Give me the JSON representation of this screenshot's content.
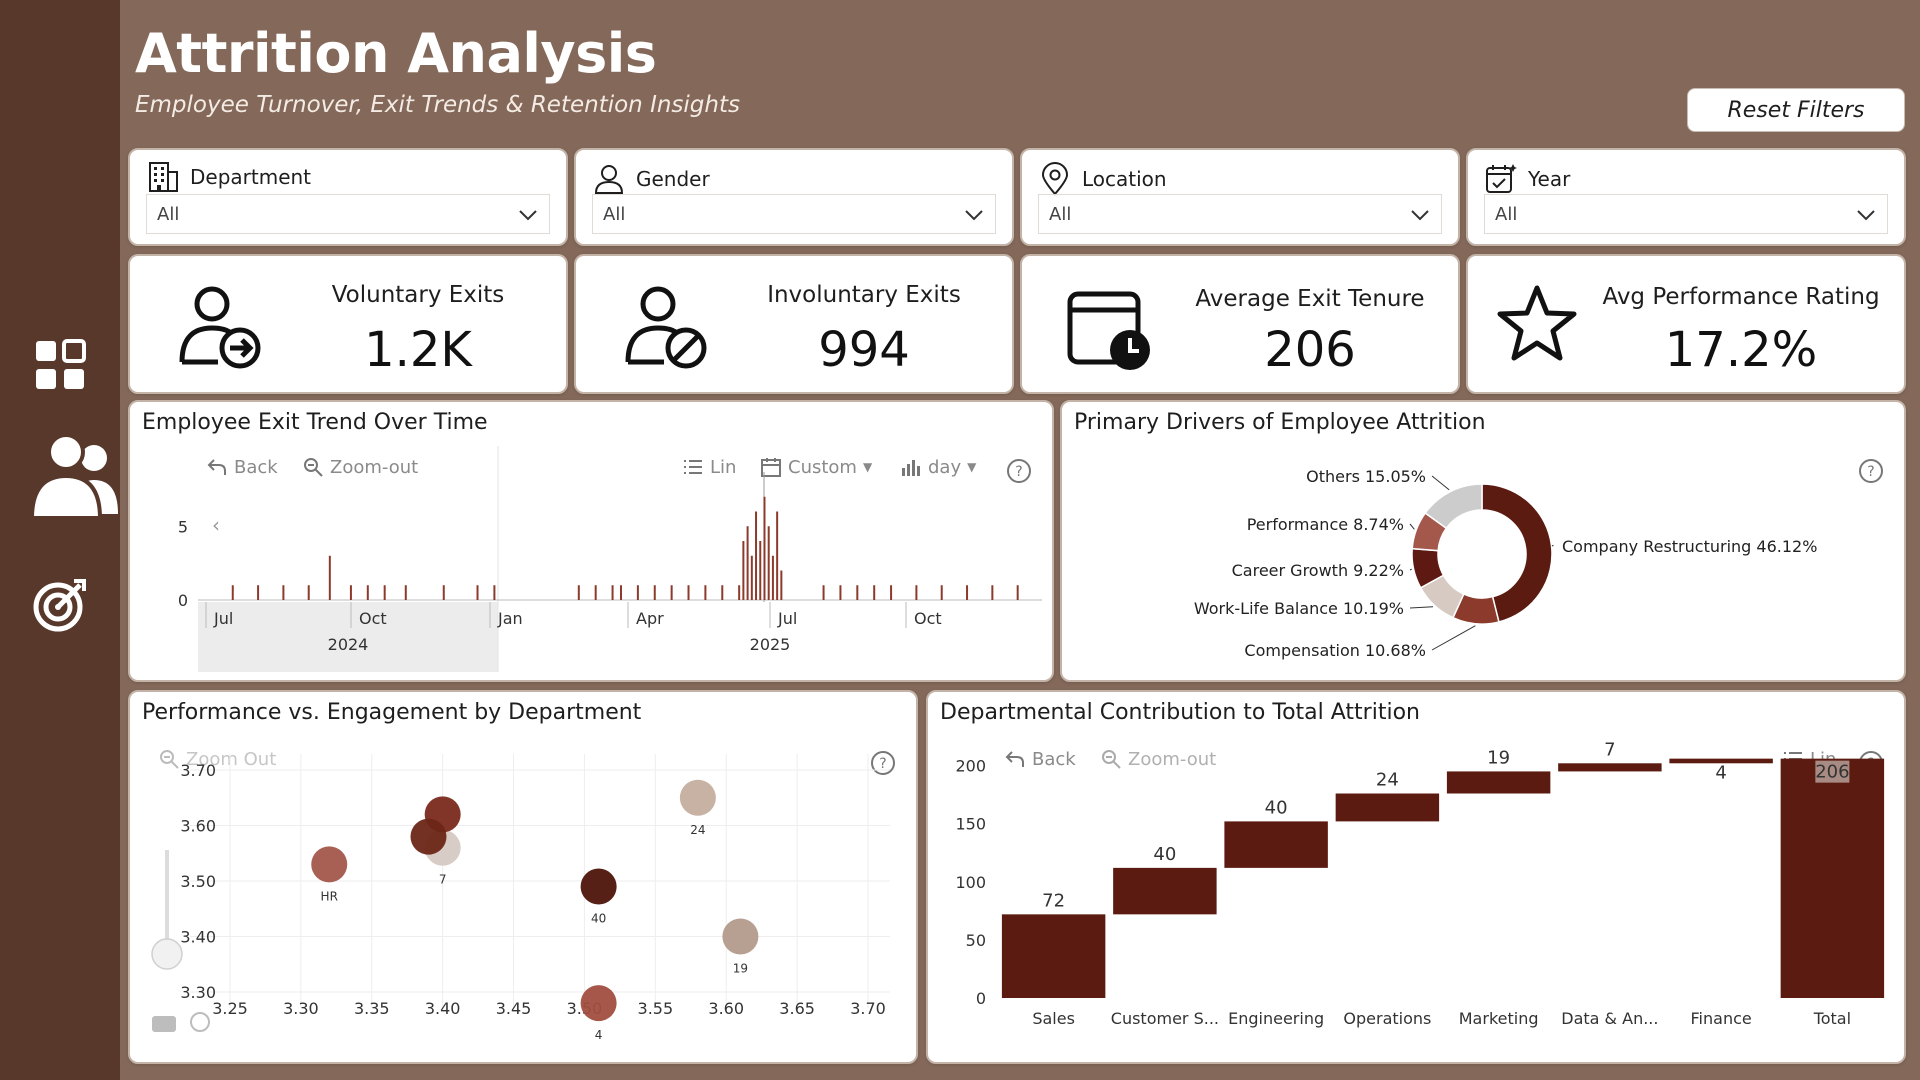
{
  "header": {
    "title": "Attrition Analysis",
    "subtitle": "Employee Turnover, Exit Trends & Retention Insights",
    "reset_label": "Reset Filters"
  },
  "colors": {
    "background": "#84695a",
    "sidebar": "#59382c",
    "dark_brown": "#5b1b10",
    "mid_brown": "#7a2a1e",
    "rose": "#a4574b",
    "tan": "#b39a8c",
    "light_tan": "#d6cac3",
    "grey": "#cccccc"
  },
  "sidebar": {
    "items": [
      {
        "icon": "dashboard-icon"
      },
      {
        "icon": "people-icon"
      },
      {
        "icon": "target-icon"
      }
    ]
  },
  "filters": [
    {
      "label": "Department",
      "icon": "building-icon",
      "value": "All"
    },
    {
      "label": "Gender",
      "icon": "person-icon",
      "value": "All"
    },
    {
      "label": "Location",
      "icon": "location-pin-icon",
      "value": "All"
    },
    {
      "label": "Year",
      "icon": "calendar-check-icon",
      "value": "All"
    }
  ],
  "kpis": [
    {
      "label": "Voluntary Exits",
      "value": "1.2K",
      "icon": "user-exit-icon"
    },
    {
      "label": "Involuntary Exits",
      "value": "994",
      "icon": "user-blocked-icon"
    },
    {
      "label": "Average Exit Tenure",
      "value": "206",
      "icon": "calendar-clock-icon"
    },
    {
      "label": "Avg Performance Rating",
      "value": "17.2%",
      "icon": "star-icon"
    }
  ],
  "trend_panel": {
    "title": "Employee Exit Trend Over Time",
    "toolbar": {
      "back": "Back",
      "zoom": "Zoom-out",
      "scale": "Lin",
      "range": "Custom",
      "granularity": "day"
    }
  },
  "drivers_panel": {
    "title": "Primary Drivers of Employee Attrition"
  },
  "scatter_panel": {
    "title": "Performance vs. Engagement by Department",
    "zoom": "Zoom Out"
  },
  "waterfall_panel": {
    "title": "Departmental Contribution to Total Attrition",
    "toolbar": {
      "back": "Back",
      "zoom": "Zoom-out",
      "scale": "Lin"
    }
  },
  "chart_data": [
    {
      "type": "bar",
      "title": "Employee Exit Trend Over Time",
      "x_ticks": [
        "Jul",
        "Oct",
        "Jan",
        "Apr",
        "Jul",
        "Oct"
      ],
      "x_years": [
        "2024",
        "2025"
      ],
      "y_ticks": [
        0,
        5
      ],
      "ylim": [
        0,
        8
      ],
      "series": [
        {
          "values": [
            {
              "x": 0.04,
              "y": 1
            },
            {
              "x": 0.07,
              "y": 1
            },
            {
              "x": 0.1,
              "y": 1
            },
            {
              "x": 0.13,
              "y": 1
            },
            {
              "x": 0.155,
              "y": 3
            },
            {
              "x": 0.18,
              "y": 1
            },
            {
              "x": 0.2,
              "y": 1
            },
            {
              "x": 0.22,
              "y": 1
            },
            {
              "x": 0.245,
              "y": 1
            },
            {
              "x": 0.29,
              "y": 1
            },
            {
              "x": 0.33,
              "y": 1
            },
            {
              "x": 0.35,
              "y": 1
            },
            {
              "x": 0.45,
              "y": 1
            },
            {
              "x": 0.47,
              "y": 1
            },
            {
              "x": 0.49,
              "y": 1
            },
            {
              "x": 0.5,
              "y": 1
            },
            {
              "x": 0.52,
              "y": 1
            },
            {
              "x": 0.54,
              "y": 1
            },
            {
              "x": 0.56,
              "y": 1
            },
            {
              "x": 0.58,
              "y": 1
            },
            {
              "x": 0.6,
              "y": 1
            },
            {
              "x": 0.62,
              "y": 1
            },
            {
              "x": 0.64,
              "y": 1
            },
            {
              "x": 0.645,
              "y": 4
            },
            {
              "x": 0.65,
              "y": 5
            },
            {
              "x": 0.655,
              "y": 3
            },
            {
              "x": 0.66,
              "y": 6
            },
            {
              "x": 0.665,
              "y": 4
            },
            {
              "x": 0.67,
              "y": 7
            },
            {
              "x": 0.675,
              "y": 5
            },
            {
              "x": 0.68,
              "y": 3
            },
            {
              "x": 0.685,
              "y": 6
            },
            {
              "x": 0.69,
              "y": 2
            },
            {
              "x": 0.74,
              "y": 1
            },
            {
              "x": 0.76,
              "y": 1
            },
            {
              "x": 0.78,
              "y": 1
            },
            {
              "x": 0.8,
              "y": 1
            },
            {
              "x": 0.82,
              "y": 1
            },
            {
              "x": 0.85,
              "y": 1
            },
            {
              "x": 0.88,
              "y": 1
            },
            {
              "x": 0.91,
              "y": 1
            },
            {
              "x": 0.94,
              "y": 1
            },
            {
              "x": 0.97,
              "y": 1
            }
          ]
        }
      ]
    },
    {
      "type": "pie",
      "title": "Primary Drivers of Employee Attrition",
      "slices": [
        {
          "label": "Company Restructuring 46.12%",
          "value": 46.12,
          "color": "#5b1b10"
        },
        {
          "label": "Compensation 10.68%",
          "value": 10.68,
          "color": "#8c3a2c"
        },
        {
          "label": "Work-Life Balance 10.19%",
          "value": 10.19,
          "color": "#d6cac3"
        },
        {
          "label": "Career Growth 9.22%",
          "value": 9.22,
          "color": "#5e1a12"
        },
        {
          "label": "Performance 8.74%",
          "value": 8.74,
          "color": "#a4574b"
        },
        {
          "label": "Others 15.05%",
          "value": 15.05,
          "color": "#cccccc"
        }
      ]
    },
    {
      "type": "scatter",
      "title": "Performance vs. Engagement by Department",
      "xlim": [
        3.25,
        3.7
      ],
      "ylim": [
        3.3,
        3.7
      ],
      "x_ticks": [
        "3.25",
        "3.30",
        "3.35",
        "3.40",
        "3.45",
        "3.50",
        "3.55",
        "3.60",
        "3.65",
        "3.70"
      ],
      "y_ticks": [
        "3.30",
        "3.40",
        "3.50",
        "3.60",
        "3.70"
      ],
      "points": [
        {
          "x": 3.32,
          "y": 3.53,
          "label": "HR",
          "color": "#a4574b"
        },
        {
          "x": 3.4,
          "y": 3.56,
          "label": "7",
          "color": "#d6cac3"
        },
        {
          "x": 3.4,
          "y": 3.62,
          "label": "",
          "color": "#7a2a1e"
        },
        {
          "x": 3.39,
          "y": 3.58,
          "label": "",
          "color": "#6b2617"
        },
        {
          "x": 3.51,
          "y": 3.49,
          "label": "40",
          "color": "#4d140a"
        },
        {
          "x": 3.51,
          "y": 3.28,
          "label": "4",
          "color": "#a14e40"
        },
        {
          "x": 3.58,
          "y": 3.65,
          "label": "24",
          "color": "#c4ae9f"
        },
        {
          "x": 3.61,
          "y": 3.4,
          "label": "19",
          "color": "#b39a8c"
        }
      ]
    },
    {
      "type": "bar",
      "subtype": "waterfall",
      "title": "Departmental Contribution to Total Attrition",
      "categories": [
        "Sales",
        "Customer S...",
        "Engineering",
        "Operations",
        "Marketing",
        "Data & An...",
        "Finance",
        "Total"
      ],
      "values": [
        72,
        40,
        40,
        24,
        19,
        7,
        4,
        206
      ],
      "ylim": [
        0,
        210
      ],
      "y_ticks": [
        0,
        50,
        100,
        150,
        200
      ]
    }
  ]
}
